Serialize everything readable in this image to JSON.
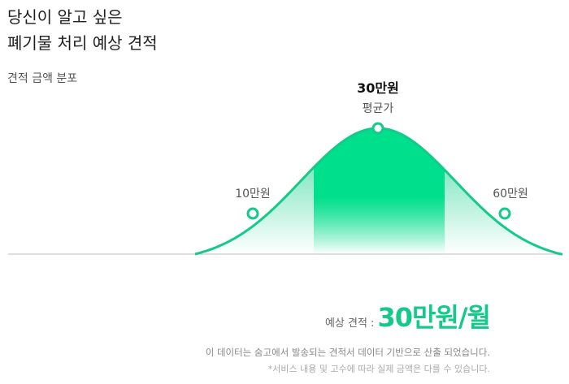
{
  "headline": {
    "line1": "당신이 알고 싶은",
    "line2": "폐기물 처리 예상 견적"
  },
  "distribution": {
    "title": "견적 금액 분포",
    "low_label": "10만원",
    "avg_value": "30만원",
    "avg_caption": "평균가",
    "high_label": "60만원"
  },
  "colors": {
    "accent": "#15c98a",
    "accent_light": "#00e08c"
  },
  "summary": {
    "label": "예상 견적 :",
    "value": "30만원/월"
  },
  "notes": {
    "line1": "이 데이터는 숨고에서 발송되는 견적서 데이터 기반으로 산출 되었습니다.",
    "line2": "*서비스 내용 및 고수에 따라 실제 금액은 다를 수 있습니다."
  },
  "chart_data": {
    "type": "area",
    "markers": [
      {
        "label": "10만원",
        "value": 10
      },
      {
        "label": "30만원",
        "value": 30,
        "caption": "평균가"
      },
      {
        "label": "60만원",
        "value": 60
      }
    ]
  }
}
